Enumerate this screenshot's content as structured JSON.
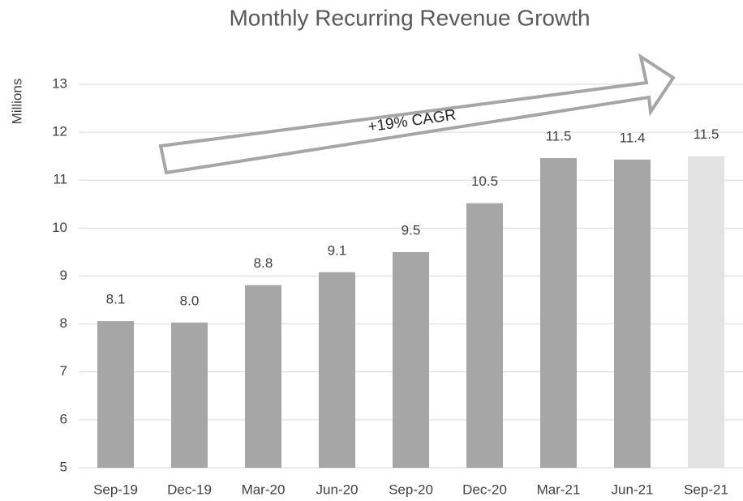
{
  "chart_data": {
    "type": "bar",
    "title": "Monthly Recurring Revenue Growth",
    "y_axis_label": "Millions",
    "annotation": "+19% CAGR",
    "categories": [
      "Sep-19",
      "Dec-19",
      "Mar-20",
      "Jun-20",
      "Sep-20",
      "Dec-20",
      "Mar-21",
      "Jun-21",
      "Sep-21"
    ],
    "values": [
      8.06,
      8.03,
      8.81,
      9.08,
      9.5,
      10.52,
      11.46,
      11.43,
      11.5
    ],
    "value_labels": [
      "8.1",
      "8.0",
      "8.8",
      "9.1",
      "9.5",
      "10.5",
      "11.5",
      "11.4",
      "11.5"
    ],
    "colors": [
      "#a6a6a6",
      "#a6a6a6",
      "#a6a6a6",
      "#a6a6a6",
      "#a6a6a6",
      "#a6a6a6",
      "#a6a6a6",
      "#a6a6a6",
      "#e3e3e3"
    ],
    "ylim": [
      5,
      13
    ],
    "yticks": [
      5,
      6,
      7,
      8,
      9,
      10,
      11,
      12,
      13
    ],
    "grid": true
  }
}
